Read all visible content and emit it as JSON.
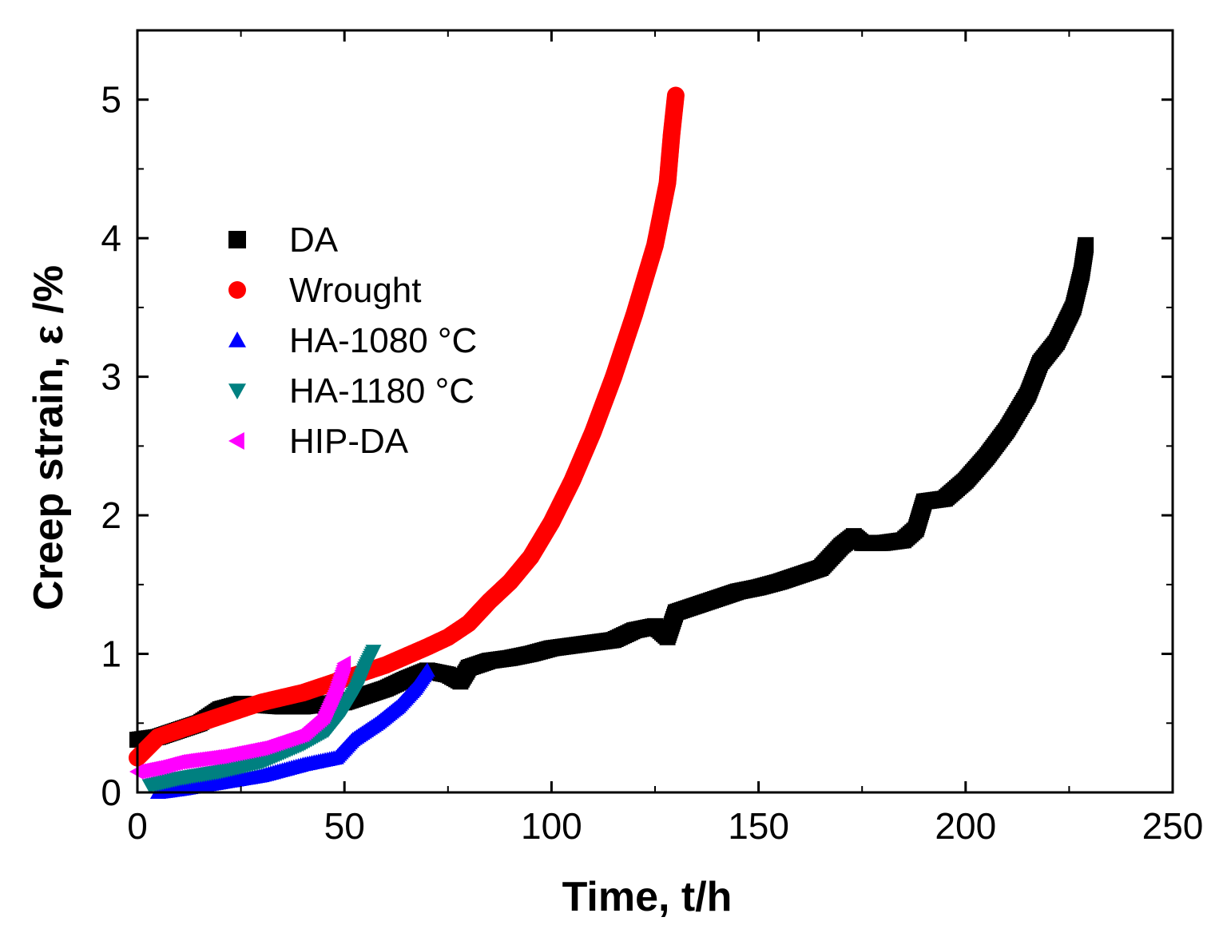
{
  "chart_data": {
    "type": "scatter",
    "xlabel": "Time, t/h",
    "ylabel": "Creep strain, ε /%",
    "xlim": [
      0,
      250
    ],
    "ylim": [
      0,
      5.5
    ],
    "xticks": [
      0,
      50,
      100,
      150,
      200,
      250
    ],
    "yticks": [
      0,
      1,
      2,
      3,
      4,
      5
    ],
    "x_tick_labels": [
      "0",
      "50",
      "100",
      "150",
      "200",
      "250"
    ],
    "y_tick_labels": [
      "0",
      "1",
      "2",
      "3",
      "4",
      "5"
    ],
    "grid": false,
    "legend_position": "center-left",
    "series": [
      {
        "name": "DA",
        "marker": "square",
        "color": "#000000",
        "points": [
          [
            0,
            0.38
          ],
          [
            5,
            0.4
          ],
          [
            10,
            0.45
          ],
          [
            15,
            0.5
          ],
          [
            20,
            0.6
          ],
          [
            25,
            0.64
          ],
          [
            30,
            0.63
          ],
          [
            35,
            0.62
          ],
          [
            40,
            0.62
          ],
          [
            45,
            0.64
          ],
          [
            50,
            0.65
          ],
          [
            55,
            0.7
          ],
          [
            60,
            0.75
          ],
          [
            65,
            0.82
          ],
          [
            70,
            0.88
          ],
          [
            75,
            0.85
          ],
          [
            78,
            0.8
          ],
          [
            80,
            0.9
          ],
          [
            85,
            0.95
          ],
          [
            90,
            0.97
          ],
          [
            95,
            1.0
          ],
          [
            100,
            1.04
          ],
          [
            105,
            1.06
          ],
          [
            110,
            1.08
          ],
          [
            115,
            1.1
          ],
          [
            120,
            1.17
          ],
          [
            125,
            1.2
          ],
          [
            128,
            1.12
          ],
          [
            130,
            1.3
          ],
          [
            135,
            1.35
          ],
          [
            140,
            1.4
          ],
          [
            145,
            1.45
          ],
          [
            150,
            1.48
          ],
          [
            155,
            1.52
          ],
          [
            160,
            1.57
          ],
          [
            165,
            1.62
          ],
          [
            170,
            1.78
          ],
          [
            173,
            1.85
          ],
          [
            175,
            1.8
          ],
          [
            180,
            1.8
          ],
          [
            185,
            1.82
          ],
          [
            188,
            1.9
          ],
          [
            190,
            2.1
          ],
          [
            195,
            2.12
          ],
          [
            200,
            2.25
          ],
          [
            205,
            2.42
          ],
          [
            210,
            2.62
          ],
          [
            215,
            2.87
          ],
          [
            218,
            3.1
          ],
          [
            222,
            3.25
          ],
          [
            226,
            3.5
          ],
          [
            228,
            3.75
          ],
          [
            229,
            3.95
          ]
        ]
      },
      {
        "name": "Wrought",
        "marker": "circle",
        "color": "#ff0000",
        "points": [
          [
            0,
            0.25
          ],
          [
            5,
            0.4
          ],
          [
            10,
            0.45
          ],
          [
            20,
            0.55
          ],
          [
            30,
            0.65
          ],
          [
            40,
            0.72
          ],
          [
            50,
            0.82
          ],
          [
            60,
            0.92
          ],
          [
            70,
            1.05
          ],
          [
            75,
            1.12
          ],
          [
            80,
            1.22
          ],
          [
            85,
            1.38
          ],
          [
            90,
            1.52
          ],
          [
            95,
            1.7
          ],
          [
            100,
            1.95
          ],
          [
            105,
            2.25
          ],
          [
            110,
            2.6
          ],
          [
            115,
            3.0
          ],
          [
            120,
            3.45
          ],
          [
            125,
            3.95
          ],
          [
            128,
            4.4
          ],
          [
            129,
            4.75
          ],
          [
            130,
            5.03
          ]
        ]
      },
      {
        "name": "HA-1080 °C",
        "marker": "triangle-up",
        "color": "#0000ff",
        "points": [
          [
            5,
            0.0
          ],
          [
            10,
            0.02
          ],
          [
            20,
            0.07
          ],
          [
            30,
            0.12
          ],
          [
            40,
            0.2
          ],
          [
            48,
            0.25
          ],
          [
            52,
            0.38
          ],
          [
            58,
            0.5
          ],
          [
            63,
            0.62
          ],
          [
            67,
            0.75
          ],
          [
            70,
            0.88
          ]
        ]
      },
      {
        "name": "HA-1180 °C",
        "marker": "triangle-down",
        "color": "#008080",
        "points": [
          [
            3,
            0.05
          ],
          [
            10,
            0.1
          ],
          [
            20,
            0.15
          ],
          [
            30,
            0.22
          ],
          [
            40,
            0.35
          ],
          [
            46,
            0.45
          ],
          [
            50,
            0.6
          ],
          [
            53,
            0.75
          ],
          [
            55,
            0.9
          ],
          [
            57,
            1.02
          ]
        ]
      },
      {
        "name": "HIP-DA",
        "marker": "triangle-left",
        "color": "#ff00ff",
        "points": [
          [
            0,
            0.15
          ],
          [
            5,
            0.18
          ],
          [
            10,
            0.22
          ],
          [
            20,
            0.26
          ],
          [
            30,
            0.32
          ],
          [
            40,
            0.42
          ],
          [
            45,
            0.55
          ],
          [
            48,
            0.75
          ],
          [
            50,
            0.93
          ]
        ]
      }
    ]
  }
}
